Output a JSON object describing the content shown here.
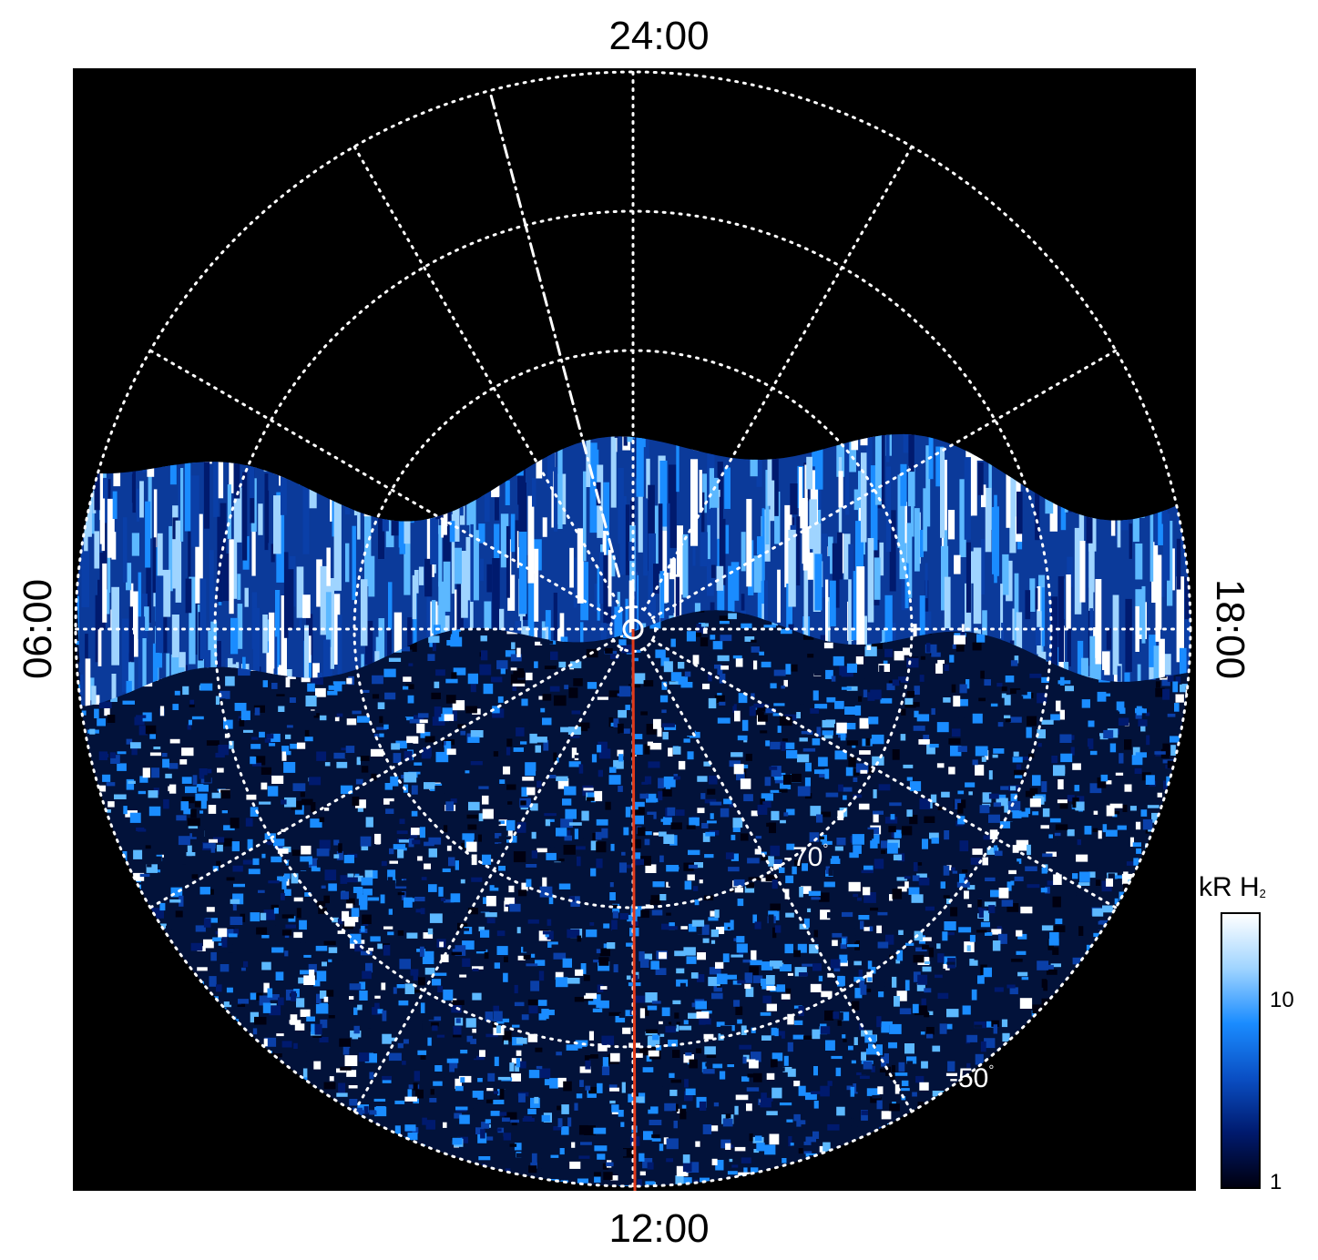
{
  "local_time_labels": {
    "top": "24:00",
    "bottom": "12:00",
    "left": "06:00",
    "right": "18:00"
  },
  "latitude_labels": {
    "inner": "-70",
    "outer": "-50",
    "degree_symbol": "°"
  },
  "colorbar": {
    "title_main": "kR H",
    "title_sub": "2",
    "ticks": [
      "10",
      "1"
    ],
    "scale": "log",
    "range": [
      1,
      20
    ],
    "colors": [
      "#000010",
      "#001a6e",
      "#0a4fc4",
      "#1a8cff",
      "#9fd4ff",
      "#ffffff"
    ]
  },
  "colors": {
    "background": "#000000",
    "grid": "#ffffff",
    "track": "#e03a1a"
  }
}
